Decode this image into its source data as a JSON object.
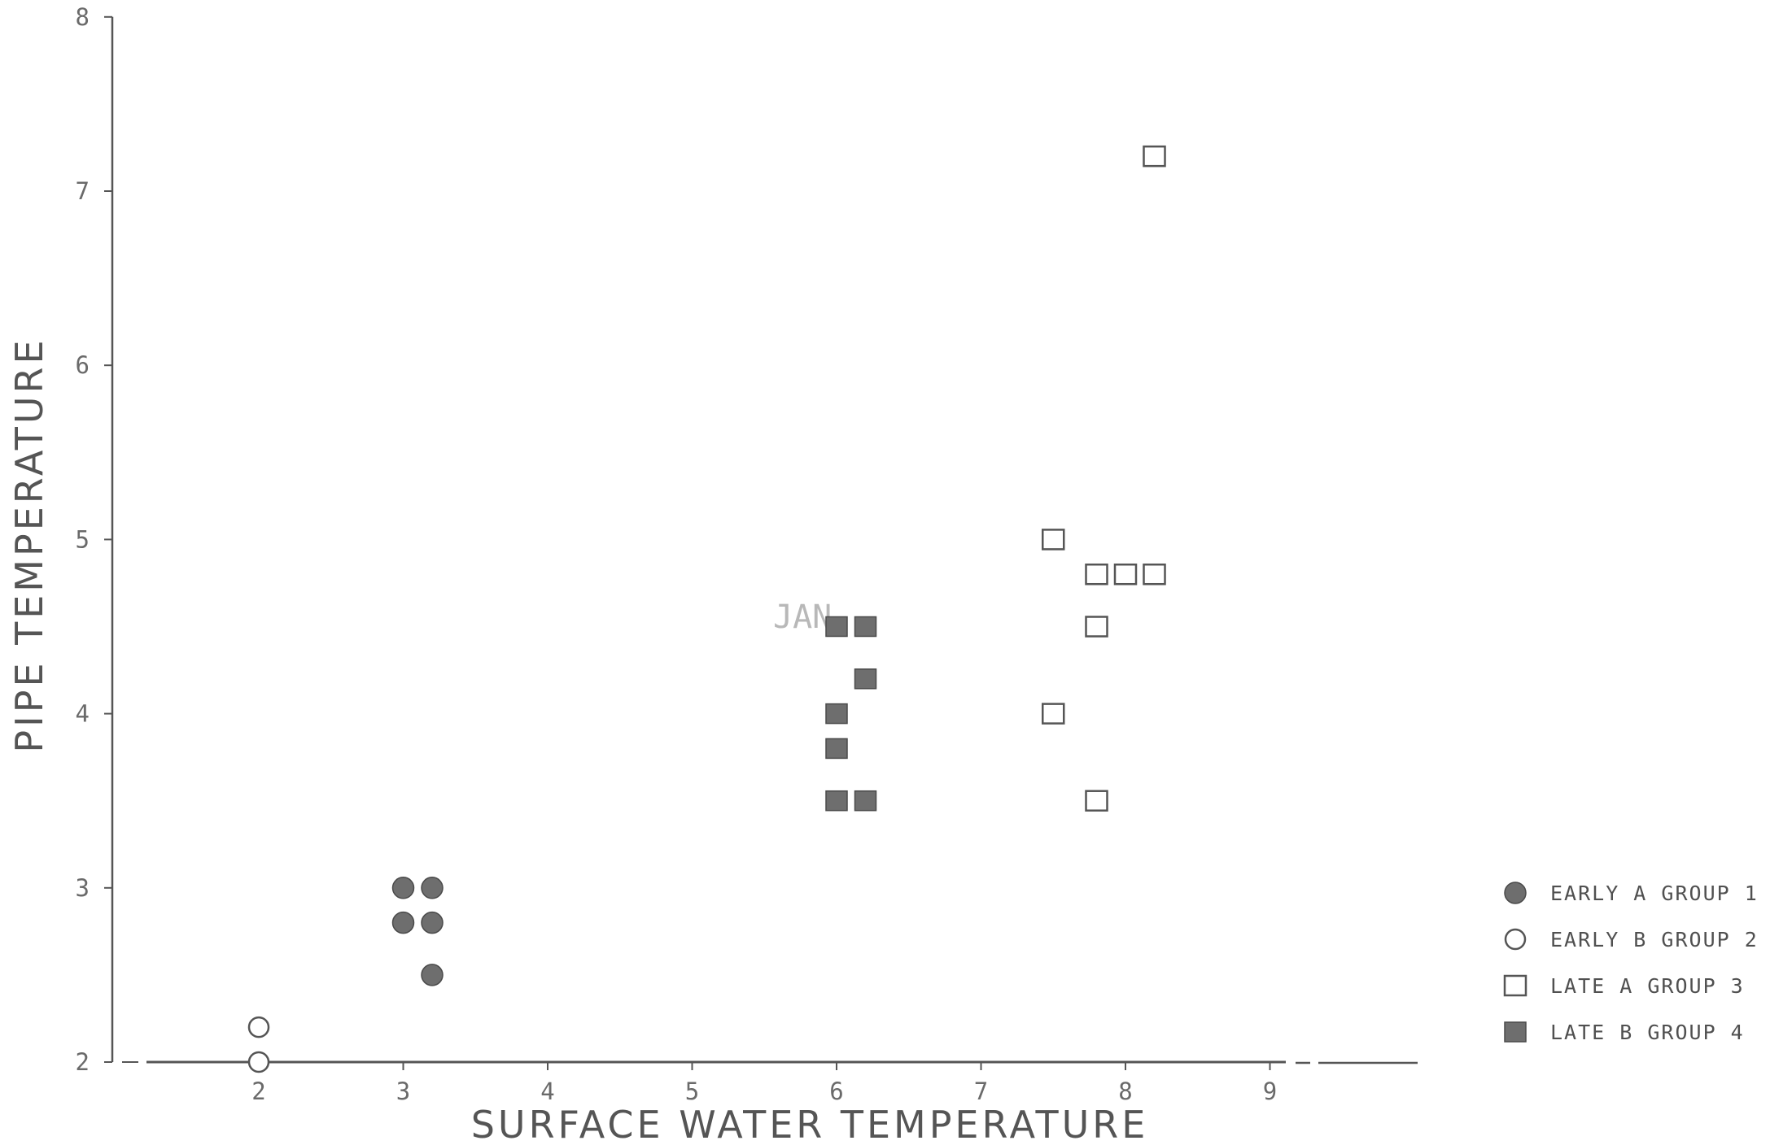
{
  "chart_data": {
    "type": "scatter",
    "title": "",
    "xlabel": "SURFACE WATER TEMPERATURE",
    "ylabel": "PIPE TEMPERATURE",
    "xlim": [
      1,
      10
    ],
    "ylim": [
      2,
      8
    ],
    "xticks": [
      2,
      3,
      4,
      5,
      6,
      7,
      8,
      9
    ],
    "yticks": [
      2,
      3,
      4,
      5,
      6,
      7,
      8
    ],
    "grid": false,
    "legend_position": "right",
    "annotation": "JAN",
    "series": [
      {
        "name": "EARLY A GROUP 1",
        "marker": "filled-circle",
        "points": [
          [
            3.0,
            3.0
          ],
          [
            3.2,
            3.0
          ],
          [
            3.0,
            2.8
          ],
          [
            3.2,
            2.8
          ],
          [
            3.2,
            2.5
          ]
        ]
      },
      {
        "name": "EARLY B GROUP 2",
        "marker": "open-circle",
        "points": [
          [
            2.0,
            2.2
          ],
          [
            2.0,
            2.0
          ]
        ]
      },
      {
        "name": "LATE A GROUP 3",
        "marker": "open-square",
        "points": [
          [
            8.2,
            7.2
          ],
          [
            7.5,
            5.0
          ],
          [
            7.8,
            4.8
          ],
          [
            8.0,
            4.8
          ],
          [
            8.2,
            4.8
          ],
          [
            7.8,
            4.5
          ],
          [
            7.5,
            4.0
          ],
          [
            7.8,
            3.5
          ]
        ]
      },
      {
        "name": "LATE B GROUP 4",
        "marker": "filled-square",
        "points": [
          [
            6.0,
            4.5
          ],
          [
            6.2,
            4.5
          ],
          [
            6.2,
            4.2
          ],
          [
            6.0,
            4.0
          ],
          [
            6.0,
            3.8
          ],
          [
            6.0,
            3.5
          ],
          [
            6.2,
            3.5
          ]
        ]
      }
    ]
  }
}
